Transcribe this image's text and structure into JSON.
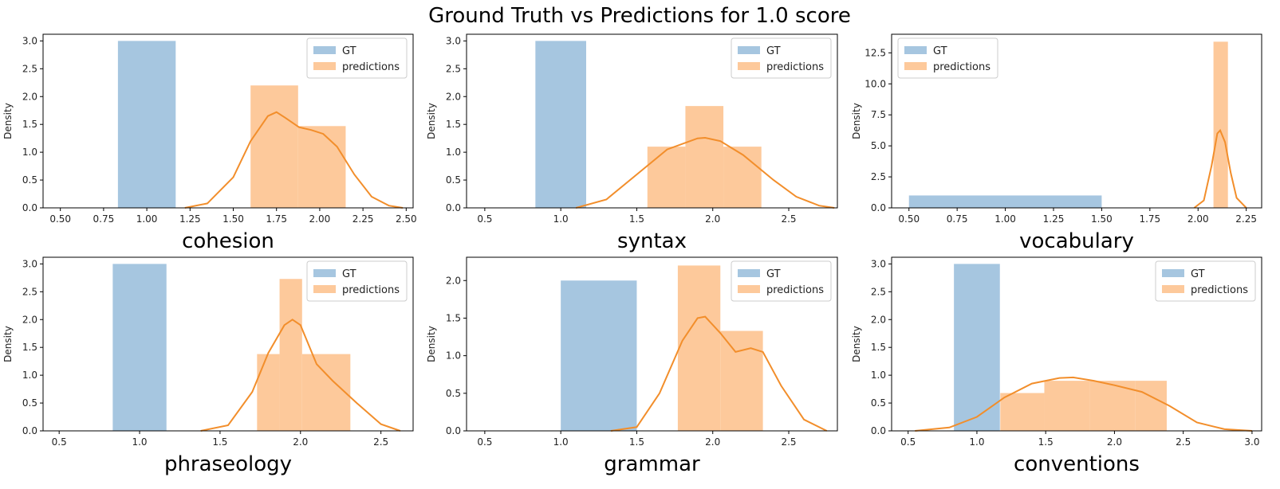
{
  "figure": {
    "title": "Ground Truth vs Predictions for 1.0 score",
    "colors": {
      "gt": "#a6c6e0",
      "pred_bar": "#fdc99b",
      "kde": "#f28e2b",
      "axis": "#000000"
    }
  },
  "chart_data": [
    {
      "type": "bar",
      "xlabel": "cohesion",
      "ylabel": "Density",
      "xlim": [
        0.4,
        2.54
      ],
      "ylim": [
        0,
        3.12
      ],
      "xticks": [
        "0.50",
        "0.75",
        "1.00",
        "1.25",
        "1.50",
        "1.75",
        "2.00",
        "2.25",
        "2.50"
      ],
      "xtick_values": [
        0.5,
        0.75,
        1.0,
        1.25,
        1.5,
        1.75,
        2.0,
        2.25,
        2.5
      ],
      "yticks": [
        "0.0",
        "0.5",
        "1.0",
        "1.5",
        "2.0",
        "2.5",
        "3.0"
      ],
      "ytick_values": [
        0,
        0.5,
        1.0,
        1.5,
        2.0,
        2.5,
        3.0
      ],
      "legend": {
        "placement": "upper-right",
        "entries": [
          "GT",
          "predictions"
        ]
      },
      "series": [
        {
          "name": "GT",
          "kind": "hist",
          "bins": [
            [
              0.833,
              1.167,
              3.0
            ]
          ]
        },
        {
          "name": "predictions",
          "kind": "hist",
          "bins": [
            [
              1.6,
              1.875,
              2.2
            ],
            [
              1.875,
              2.15,
              1.47
            ]
          ]
        },
        {
          "name": "predictions",
          "kind": "kde",
          "points": [
            [
              1.22,
              0
            ],
            [
              1.35,
              0.08
            ],
            [
              1.5,
              0.55
            ],
            [
              1.6,
              1.2
            ],
            [
              1.7,
              1.65
            ],
            [
              1.75,
              1.72
            ],
            [
              1.8,
              1.62
            ],
            [
              1.88,
              1.45
            ],
            [
              1.95,
              1.4
            ],
            [
              2.02,
              1.33
            ],
            [
              2.1,
              1.1
            ],
            [
              2.2,
              0.6
            ],
            [
              2.3,
              0.2
            ],
            [
              2.4,
              0.04
            ],
            [
              2.48,
              0
            ]
          ]
        }
      ]
    },
    {
      "type": "bar",
      "xlabel": "syntax",
      "ylabel": "Density",
      "xlim": [
        0.38,
        2.82
      ],
      "ylim": [
        0,
        3.12
      ],
      "xticks": [
        "0.5",
        "1.0",
        "1.5",
        "2.0",
        "2.5"
      ],
      "xtick_values": [
        0.5,
        1.0,
        1.5,
        2.0,
        2.5
      ],
      "yticks": [
        "0.0",
        "0.5",
        "1.0",
        "1.5",
        "2.0",
        "2.5",
        "3.0"
      ],
      "ytick_values": [
        0,
        0.5,
        1.0,
        1.5,
        2.0,
        2.5,
        3.0
      ],
      "legend": {
        "placement": "upper-right",
        "entries": [
          "GT",
          "predictions"
        ]
      },
      "series": [
        {
          "name": "GT",
          "kind": "hist",
          "bins": [
            [
              0.833,
              1.167,
              3.0
            ]
          ]
        },
        {
          "name": "predictions",
          "kind": "hist",
          "bins": [
            [
              1.57,
              1.82,
              1.1
            ],
            [
              1.82,
              2.07,
              1.83
            ],
            [
              2.07,
              2.32,
              1.1
            ]
          ]
        },
        {
          "name": "predictions",
          "kind": "kde",
          "points": [
            [
              1.1,
              0
            ],
            [
              1.3,
              0.15
            ],
            [
              1.5,
              0.6
            ],
            [
              1.7,
              1.05
            ],
            [
              1.9,
              1.25
            ],
            [
              1.95,
              1.26
            ],
            [
              2.05,
              1.2
            ],
            [
              2.2,
              0.95
            ],
            [
              2.4,
              0.5
            ],
            [
              2.55,
              0.2
            ],
            [
              2.7,
              0.04
            ],
            [
              2.8,
              0
            ]
          ]
        }
      ]
    },
    {
      "type": "bar",
      "xlabel": "vocabulary",
      "ylabel": "Density",
      "xlim": [
        0.41,
        2.33
      ],
      "ylim": [
        0,
        14.0
      ],
      "xticks": [
        "0.50",
        "0.75",
        "1.00",
        "1.25",
        "1.50",
        "1.75",
        "2.00",
        "2.25"
      ],
      "xtick_values": [
        0.5,
        0.75,
        1.0,
        1.25,
        1.5,
        1.75,
        2.0,
        2.25
      ],
      "yticks": [
        "0.0",
        "2.5",
        "5.0",
        "7.5",
        "10.0",
        "12.5"
      ],
      "ytick_values": [
        0,
        2.5,
        5.0,
        7.5,
        10.0,
        12.5
      ],
      "legend": {
        "placement": "upper-left",
        "entries": [
          "GT",
          "predictions"
        ]
      },
      "series": [
        {
          "name": "GT",
          "kind": "hist",
          "bins": [
            [
              0.5,
              1.5,
              1.0
            ]
          ]
        },
        {
          "name": "predictions",
          "kind": "hist",
          "bins": [
            [
              2.08,
              2.155,
              13.4
            ]
          ]
        },
        {
          "name": "predictions",
          "kind": "kde",
          "points": [
            [
              1.98,
              0
            ],
            [
              2.03,
              0.6
            ],
            [
              2.07,
              3.4
            ],
            [
              2.1,
              6.0
            ],
            [
              2.115,
              6.25
            ],
            [
              2.14,
              5.3
            ],
            [
              2.17,
              2.8
            ],
            [
              2.2,
              0.8
            ],
            [
              2.25,
              0
            ]
          ]
        }
      ]
    },
    {
      "type": "bar",
      "xlabel": "phraseology",
      "ylabel": "Density",
      "xlim": [
        0.4,
        2.7
      ],
      "ylim": [
        0,
        3.12
      ],
      "xticks": [
        "0.5",
        "1.0",
        "1.5",
        "2.0",
        "2.5"
      ],
      "xtick_values": [
        0.5,
        1.0,
        1.5,
        2.0,
        2.5
      ],
      "yticks": [
        "0.0",
        "0.5",
        "1.0",
        "1.5",
        "2.0",
        "2.5",
        "3.0"
      ],
      "ytick_values": [
        0,
        0.5,
        1.0,
        1.5,
        2.0,
        2.5,
        3.0
      ],
      "legend": {
        "placement": "upper-right",
        "entries": [
          "GT",
          "predictions"
        ]
      },
      "series": [
        {
          "name": "GT",
          "kind": "hist",
          "bins": [
            [
              0.833,
              1.167,
              3.0
            ]
          ]
        },
        {
          "name": "predictions",
          "kind": "hist",
          "bins": [
            [
              1.73,
              1.87,
              1.38
            ],
            [
              1.87,
              2.01,
              2.73
            ],
            [
              2.01,
              2.31,
              1.38
            ]
          ]
        },
        {
          "name": "predictions",
          "kind": "kde",
          "points": [
            [
              1.38,
              0
            ],
            [
              1.55,
              0.1
            ],
            [
              1.7,
              0.7
            ],
            [
              1.8,
              1.4
            ],
            [
              1.9,
              1.9
            ],
            [
              1.95,
              2.0
            ],
            [
              2.0,
              1.9
            ],
            [
              2.1,
              1.2
            ],
            [
              2.2,
              0.9
            ],
            [
              2.35,
              0.5
            ],
            [
              2.5,
              0.12
            ],
            [
              2.62,
              0
            ]
          ]
        }
      ]
    },
    {
      "type": "bar",
      "xlabel": "grammar",
      "ylabel": "Density",
      "xlim": [
        0.38,
        2.82
      ],
      "ylim": [
        0,
        2.31
      ],
      "xticks": [
        "0.5",
        "1.0",
        "1.5",
        "2.0",
        "2.5"
      ],
      "xtick_values": [
        0.5,
        1.0,
        1.5,
        2.0,
        2.5
      ],
      "yticks": [
        "0.0",
        "0.5",
        "1.0",
        "1.5",
        "2.0"
      ],
      "ytick_values": [
        0,
        0.5,
        1.0,
        1.5,
        2.0
      ],
      "legend": {
        "placement": "upper-right",
        "entries": [
          "GT",
          "predictions"
        ]
      },
      "series": [
        {
          "name": "GT",
          "kind": "hist",
          "bins": [
            [
              1.0,
              1.5,
              2.0
            ]
          ]
        },
        {
          "name": "predictions",
          "kind": "hist",
          "bins": [
            [
              1.77,
              2.05,
              2.2
            ],
            [
              2.05,
              2.33,
              1.33
            ]
          ]
        },
        {
          "name": "predictions",
          "kind": "kde",
          "points": [
            [
              1.33,
              0
            ],
            [
              1.5,
              0.05
            ],
            [
              1.65,
              0.5
            ],
            [
              1.8,
              1.2
            ],
            [
              1.9,
              1.5
            ],
            [
              1.95,
              1.52
            ],
            [
              2.05,
              1.3
            ],
            [
              2.15,
              1.05
            ],
            [
              2.25,
              1.1
            ],
            [
              2.33,
              1.05
            ],
            [
              2.45,
              0.6
            ],
            [
              2.6,
              0.15
            ],
            [
              2.75,
              0
            ]
          ]
        }
      ]
    },
    {
      "type": "bar",
      "xlabel": "conventions",
      "ylabel": "Density",
      "xlim": [
        0.38,
        3.07
      ],
      "ylim": [
        0,
        3.12
      ],
      "xticks": [
        "0.5",
        "1.0",
        "1.5",
        "2.0",
        "2.5",
        "3.0"
      ],
      "xtick_values": [
        0.5,
        1.0,
        1.5,
        2.0,
        2.5,
        3.0
      ],
      "yticks": [
        "0.0",
        "0.5",
        "1.0",
        "1.5",
        "2.0",
        "2.5",
        "3.0"
      ],
      "ytick_values": [
        0,
        0.5,
        1.0,
        1.5,
        2.0,
        2.5,
        3.0
      ],
      "legend": {
        "placement": "upper-right",
        "entries": [
          "GT",
          "predictions"
        ]
      },
      "series": [
        {
          "name": "GT",
          "kind": "hist",
          "bins": [
            [
              0.833,
              1.167,
              3.0
            ]
          ]
        },
        {
          "name": "predictions",
          "kind": "hist",
          "bins": [
            [
              1.17,
              1.49,
              0.68
            ],
            [
              1.49,
              1.82,
              0.9
            ],
            [
              1.82,
              2.15,
              0.9
            ],
            [
              2.15,
              2.38,
              0.9
            ]
          ]
        },
        {
          "name": "predictions",
          "kind": "kde",
          "points": [
            [
              0.55,
              0
            ],
            [
              0.8,
              0.06
            ],
            [
              1.0,
              0.25
            ],
            [
              1.2,
              0.6
            ],
            [
              1.4,
              0.85
            ],
            [
              1.6,
              0.95
            ],
            [
              1.7,
              0.96
            ],
            [
              1.85,
              0.9
            ],
            [
              2.0,
              0.82
            ],
            [
              2.2,
              0.7
            ],
            [
              2.4,
              0.45
            ],
            [
              2.6,
              0.15
            ],
            [
              2.8,
              0.03
            ],
            [
              3.0,
              0
            ]
          ]
        }
      ]
    }
  ]
}
